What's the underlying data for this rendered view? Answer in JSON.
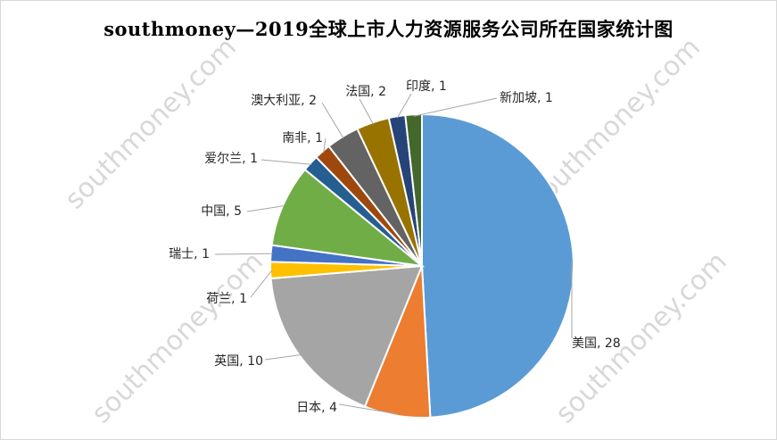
{
  "watermark_text": "southmoney.com",
  "chart_data": {
    "type": "pie",
    "title": "southmoney—2019全球上市人力资源服务公司所在国家统计图",
    "start_angle": 0,
    "direction": "clockwise",
    "slices": [
      {
        "label": "美国",
        "value": 28,
        "color": "#5b9bd5"
      },
      {
        "label": "日本",
        "value": 4,
        "color": "#ed7d31"
      },
      {
        "label": "英国",
        "value": 10,
        "color": "#a5a5a5"
      },
      {
        "label": "荷兰",
        "value": 1,
        "color": "#ffc000"
      },
      {
        "label": "瑞士",
        "value": 1,
        "color": "#4472c4"
      },
      {
        "label": "中国",
        "value": 5,
        "color": "#70ad47"
      },
      {
        "label": "爱尔兰",
        "value": 1,
        "color": "#255e91"
      },
      {
        "label": "南非",
        "value": 1,
        "color": "#9e480e"
      },
      {
        "label": "澳大利亚",
        "value": 2,
        "color": "#636363"
      },
      {
        "label": "法国",
        "value": 2,
        "color": "#997300"
      },
      {
        "label": "印度",
        "value": 1,
        "color": "#264478"
      },
      {
        "label": "新加坡",
        "value": 1,
        "color": "#43682b"
      }
    ]
  }
}
